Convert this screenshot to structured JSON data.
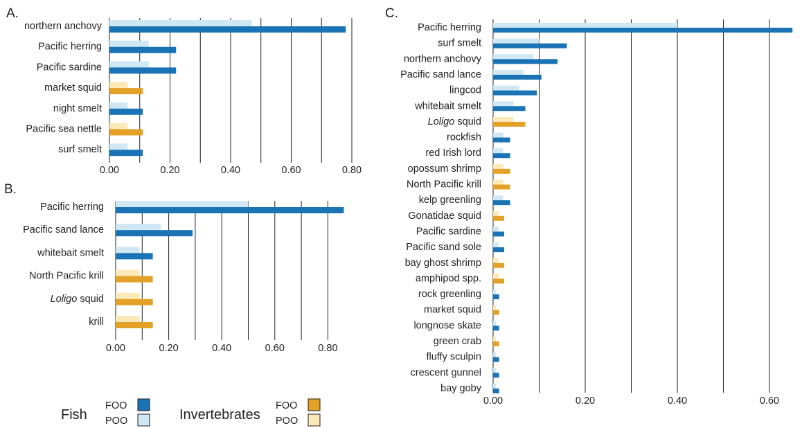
{
  "colors": {
    "fish_foo": "#1a73b5",
    "fish_poo": "#cfe8f3",
    "inv_foo": "#e3a128",
    "inv_poo": "#fbe9b8",
    "gridline": "#222222"
  },
  "legend": {
    "fish_label": "Fish",
    "invertebrates_label": "Invertebrates",
    "foo_label": "FOO",
    "poo_label": "POO"
  },
  "chart_data": [
    {
      "panel": "A.",
      "type": "bar",
      "orientation": "horizontal",
      "xlim": [
        0,
        0.8
      ],
      "ticks": [
        "0.00",
        "0.20",
        "0.40",
        "0.60",
        "0.80"
      ],
      "categories": [
        "northern anchovy",
        "Pacific herring",
        "Pacific sardine",
        "market squid",
        "night smelt",
        "Pacific sea nettle",
        "surf smelt"
      ],
      "group": [
        "fish",
        "fish",
        "fish",
        "invertebrate",
        "fish",
        "invertebrate",
        "fish"
      ],
      "series": [
        {
          "name": "FOO",
          "values": [
            0.78,
            0.22,
            0.22,
            0.11,
            0.11,
            0.11,
            0.11
          ]
        },
        {
          "name": "POO",
          "values": [
            0.47,
            0.13,
            0.13,
            0.06,
            0.06,
            0.06,
            0.06
          ]
        }
      ]
    },
    {
      "panel": "B.",
      "type": "bar",
      "orientation": "horizontal",
      "xlim": [
        0,
        0.9
      ],
      "ticks": [
        "0.00",
        "0.20",
        "0.40",
        "0.60",
        "0.80"
      ],
      "categories": [
        "Pacific herring",
        "Pacific sand lance",
        "whitebait smelt",
        "North Pacific krill",
        "Loligo squid",
        "krill"
      ],
      "italic_words": {
        "4": "Loligo"
      },
      "group": [
        "fish",
        "fish",
        "fish",
        "invertebrate",
        "invertebrate",
        "invertebrate"
      ],
      "series": [
        {
          "name": "FOO",
          "values": [
            0.86,
            0.29,
            0.14,
            0.14,
            0.14,
            0.14
          ]
        },
        {
          "name": "POO",
          "values": [
            0.5,
            0.17,
            0.09,
            0.09,
            0.09,
            0.09
          ]
        }
      ]
    },
    {
      "panel": "C.",
      "type": "bar",
      "orientation": "horizontal",
      "xlim": [
        0,
        0.65
      ],
      "ticks": [
        "0.00",
        "0.20",
        "0.40",
        "0.60"
      ],
      "categories": [
        "Pacific herring",
        "surf smelt",
        "northern anchovy",
        "Pacific sand lance",
        "lingcod",
        "whitebait smelt",
        "Loligo squid",
        "rockfish",
        "red Irish lord",
        "opossum shrimp",
        "North Pacific krill",
        "kelp greenling",
        "Gonatidae squid",
        "Pacific sardine",
        "Pacific sand sole",
        "bay ghost shrimp",
        "amphipod spp.",
        "rock greenling",
        "market squid",
        "longnose skate",
        "green crab",
        "fluffy sculpin",
        "crescent gunnel",
        "bay goby"
      ],
      "italic_words": {
        "6": "Loligo"
      },
      "group": [
        "fish",
        "fish",
        "fish",
        "fish",
        "fish",
        "fish",
        "invertebrate",
        "fish",
        "fish",
        "invertebrate",
        "invertebrate",
        "fish",
        "invertebrate",
        "fish",
        "fish",
        "invertebrate",
        "invertebrate",
        "fish",
        "invertebrate",
        "fish",
        "invertebrate",
        "fish",
        "fish",
        "fish"
      ],
      "series": [
        {
          "name": "FOO",
          "values": [
            0.65,
            0.16,
            0.14,
            0.105,
            0.095,
            0.07,
            0.07,
            0.037,
            0.037,
            0.037,
            0.037,
            0.037,
            0.024,
            0.024,
            0.024,
            0.024,
            0.024,
            0.013,
            0.013,
            0.013,
            0.013,
            0.013,
            0.013,
            0.013
          ]
        },
        {
          "name": "POO",
          "values": [
            0.4,
            0.1,
            0.088,
            0.066,
            0.057,
            0.044,
            0.044,
            0.022,
            0.022,
            0.022,
            0.022,
            0.022,
            0.012,
            0.012,
            0.012,
            0.012,
            0.012,
            0.006,
            0.006,
            0.006,
            0.006,
            0.006,
            0.006,
            0.006
          ]
        }
      ]
    }
  ]
}
